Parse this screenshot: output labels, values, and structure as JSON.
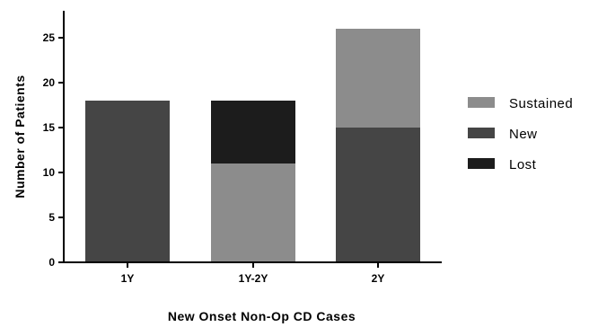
{
  "chart_data": {
    "type": "bar",
    "stacked": true,
    "categories": [
      "1Y",
      "1Y-2Y",
      "2Y"
    ],
    "series": [
      {
        "name": "Sustained",
        "values": [
          0,
          11,
          11
        ],
        "color": "#8c8c8c"
      },
      {
        "name": "New",
        "values": [
          18,
          0,
          15
        ],
        "color": "#454545"
      },
      {
        "name": "Lost",
        "values": [
          0,
          7,
          0
        ],
        "color": "#1c1c1c"
      }
    ],
    "stack_order": {
      "1Y": [
        "New"
      ],
      "1Y-2Y": [
        "Sustained",
        "Lost"
      ],
      "2Y": [
        "New",
        "Sustained"
      ]
    },
    "title": "",
    "xlabel": "New Onset Non-Op CD Cases",
    "ylabel": "Number of Patients",
    "ylim": [
      0,
      28
    ],
    "yticks": [
      0,
      5,
      10,
      15,
      20,
      25
    ],
    "grid": false,
    "legend_position": "right"
  }
}
